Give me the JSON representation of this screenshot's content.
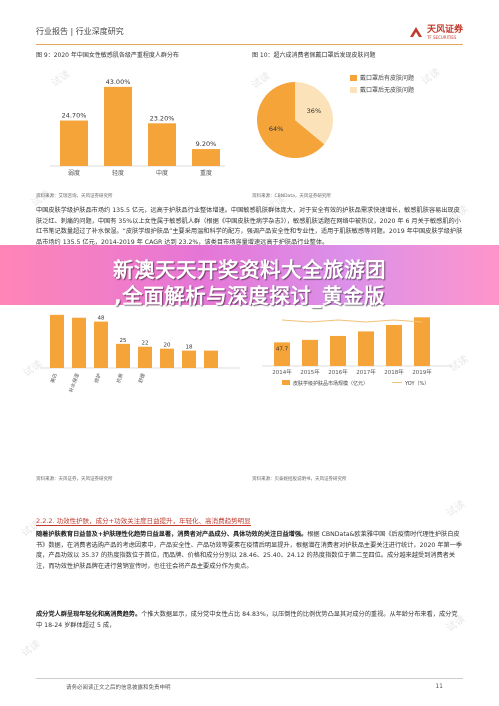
{
  "header": {
    "crumb": "行业报告 | 行业深度研究",
    "logo_name": "天风证券",
    "logo_sub": "TF SECURITIES"
  },
  "watermark_text": "试读",
  "fig9": {
    "title": "图 9：2020 年中国女性敏感肌各级严重程度人群分布",
    "source": "资料来源：艾瑞咨询，天风证券研究所"
  },
  "fig10": {
    "title": "图 10：超六成消费者佩戴口罩后发现皮肤问题",
    "source": "资料来源：CBNData，天风证券研究所"
  },
  "para1": "中国皮肤学级护肤品市场约 135.5 亿元，远高于护肤品行业整体增速。中国敏感肌肤群体庞大，对于安全有效的护肤品需求快速增长，敏感肌肤容易出现皮肤泛红、刺痛的问题，中国有 35%以上女性属于敏感肌人群（根据《中国皮肤性病学杂志》），敏感肌肤话题在网络中被热议，2020 年 6 月关于敏感肌的小红书笔记数量超过了补水保湿。“皮肤学级护肤品”主要采用温和科学的配方，强调产品安全性和专业性，适用于肌肤敏感等问题。2019 年中国皮肤学级护肤品市场约 135.5 亿元，2014-2019 年 CAGR 达到 23.2%，该类目市场容量增速远高于护肤品行业整体。",
  "banner": {
    "line1": "新澳天天开奖资料大全旅游团",
    "line2": ",全面解析与深度探讨_黄金版"
  },
  "fig11": {
    "source": "资料来源：天风证券，天风证券研究所"
  },
  "fig12": {
    "source": "资料来源：贝泰妮招股说明书，天风证券研究所"
  },
  "section": {
    "title": "2.2.2. 功效性护肤，成分+功效关注度日益提升，年轻化、高消费趋势明显"
  },
  "para2_bold": "随着护肤教育日益普及+护肤理性化趋势日益显著，消费者对产品成分、具体功效的关注日益增强。",
  "para2": "根据 CBNData&欧莱雅中国《后疫情时代理性护肤白皮书》数据，在消费者选购产品的考虑因素中，产品安全性、产品功效等要素在疫情后明显提升，根据潜在消费者对护肤品主要关注进行统计，2020 年第一季度，产品功效以 35.37 的热度指数位于首位，而品牌、价格和成分分别以 28.46、25.40、24.12 的热度指数位于第二至四位。成分越来越受到消费者关注，而功效性护肤品牌在进行营销宣传时，也往往会将产品主要成分作为卖点。",
  "para3_bold": "成分党人群呈现年轻化和高消费趋势。",
  "para3": "个推大数据显示，成分党中女性占比 84.83%，以压倒性的比例优势凸显其对成分的重视。从年龄分布来看，成分党中 18-24 岁群体超过 5 成，",
  "footer": {
    "disclaimer": "请务必阅读正文之后的信息披露和免责申明",
    "page": "11"
  },
  "chart_data": [
    {
      "type": "bar",
      "categories": [
        "弱度",
        "轻度",
        "中度",
        "重度"
      ],
      "values": [
        24.7,
        43.0,
        23.2,
        9.2
      ],
      "value_labels": [
        "24.70%",
        "43.00%",
        "23.20%",
        "9.20%"
      ],
      "color": "#f5a43a"
    },
    {
      "type": "pie",
      "slices": [
        {
          "name": "戴口罩后有皮肤问题",
          "value": 64,
          "label": "64%",
          "color": "#f5a43a"
        },
        {
          "name": "戴口罩后无皮肤问题",
          "value": 36,
          "label": "36%",
          "color": "#fbe2b8"
        }
      ]
    },
    {
      "type": "bar",
      "values": [
        48,
        25,
        22,
        20,
        18
      ],
      "value_labels": [
        "48",
        "25",
        "22",
        "20",
        "18"
      ],
      "x_labels_visible": [
        "美白",
        "补水保湿",
        "修护",
        "抗衰",
        "舒缓"
      ],
      "color": "#f5a43a"
    },
    {
      "type": "bar",
      "categories": [
        "2014年",
        "2015年",
        "2016年",
        "2017年",
        "2018年",
        "2019年"
      ],
      "values": [
        47.7,
        56.5,
        70.2,
        86.1,
        108.7,
        135.5
      ],
      "value_labels": [
        "47.7",
        "",
        "",
        "",
        "",
        ""
      ],
      "series": [
        {
          "name": "皮肤学级护肤品市场规模（亿元）"
        },
        {
          "name": "YOY（%）"
        }
      ],
      "color": "#f5a43a",
      "line_color": "#f0c27a"
    }
  ]
}
